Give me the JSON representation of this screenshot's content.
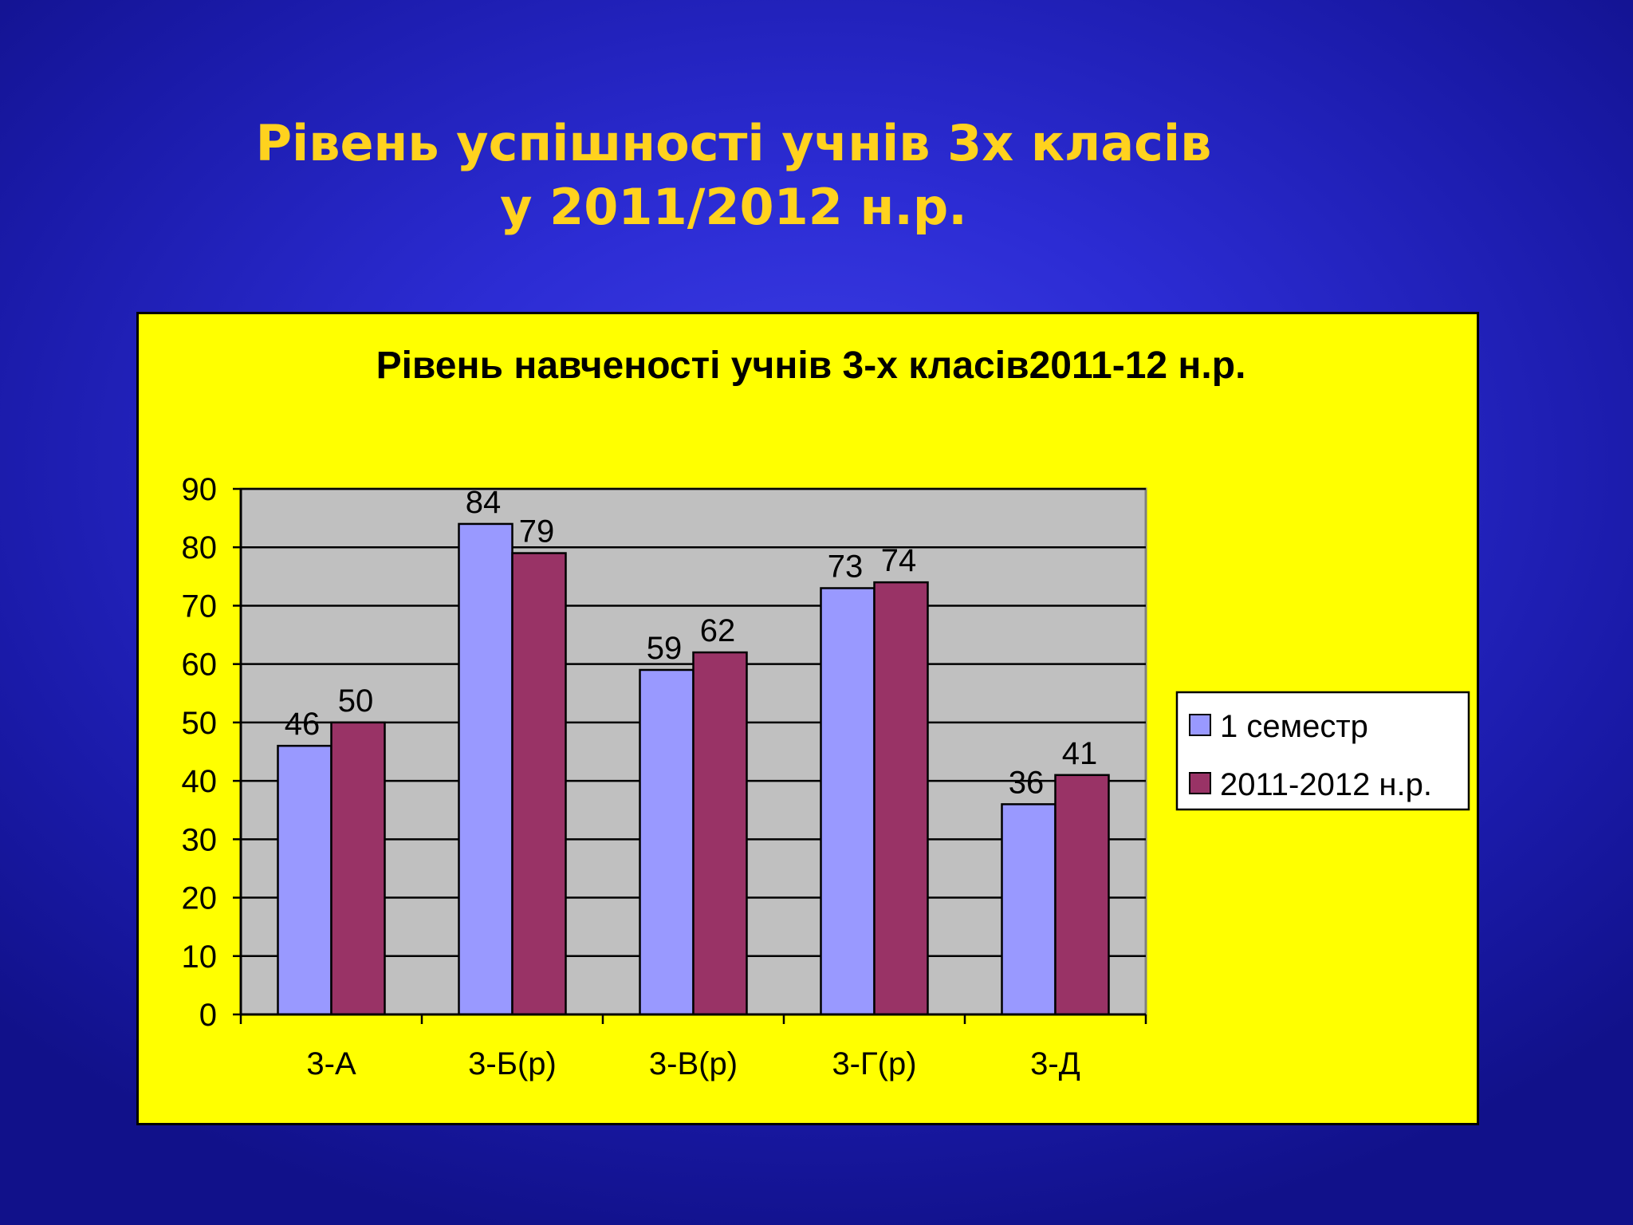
{
  "slide": {
    "title_line1": "Рівень успішності учнів 3х класів",
    "title_line2": "у 2011/2012 н.р.",
    "background_color": "#2c2cd4",
    "title_color": "#ffd21e",
    "panel_color": "#ffff00"
  },
  "chart_data": {
    "type": "bar",
    "title": "Рівень навченості учнів 3-х класів2011-12 н.р.",
    "categories": [
      "3-А",
      "3-Б(р)",
      "3-В(р)",
      "3-Г(р)",
      "3-Д"
    ],
    "series": [
      {
        "name": "1 семестр",
        "values": [
          46,
          84,
          59,
          73,
          36
        ],
        "color": "#9999ff"
      },
      {
        "name": "2011-2012 н.р.",
        "values": [
          50,
          79,
          62,
          74,
          41
        ],
        "color": "#993366"
      }
    ],
    "ylim": [
      0,
      90
    ],
    "yticks": [
      0,
      10,
      20,
      30,
      40,
      50,
      60,
      70,
      80,
      90
    ],
    "grid": true,
    "plot_background": "#c0c0c0",
    "legend_position": "right",
    "data_labels": true
  }
}
